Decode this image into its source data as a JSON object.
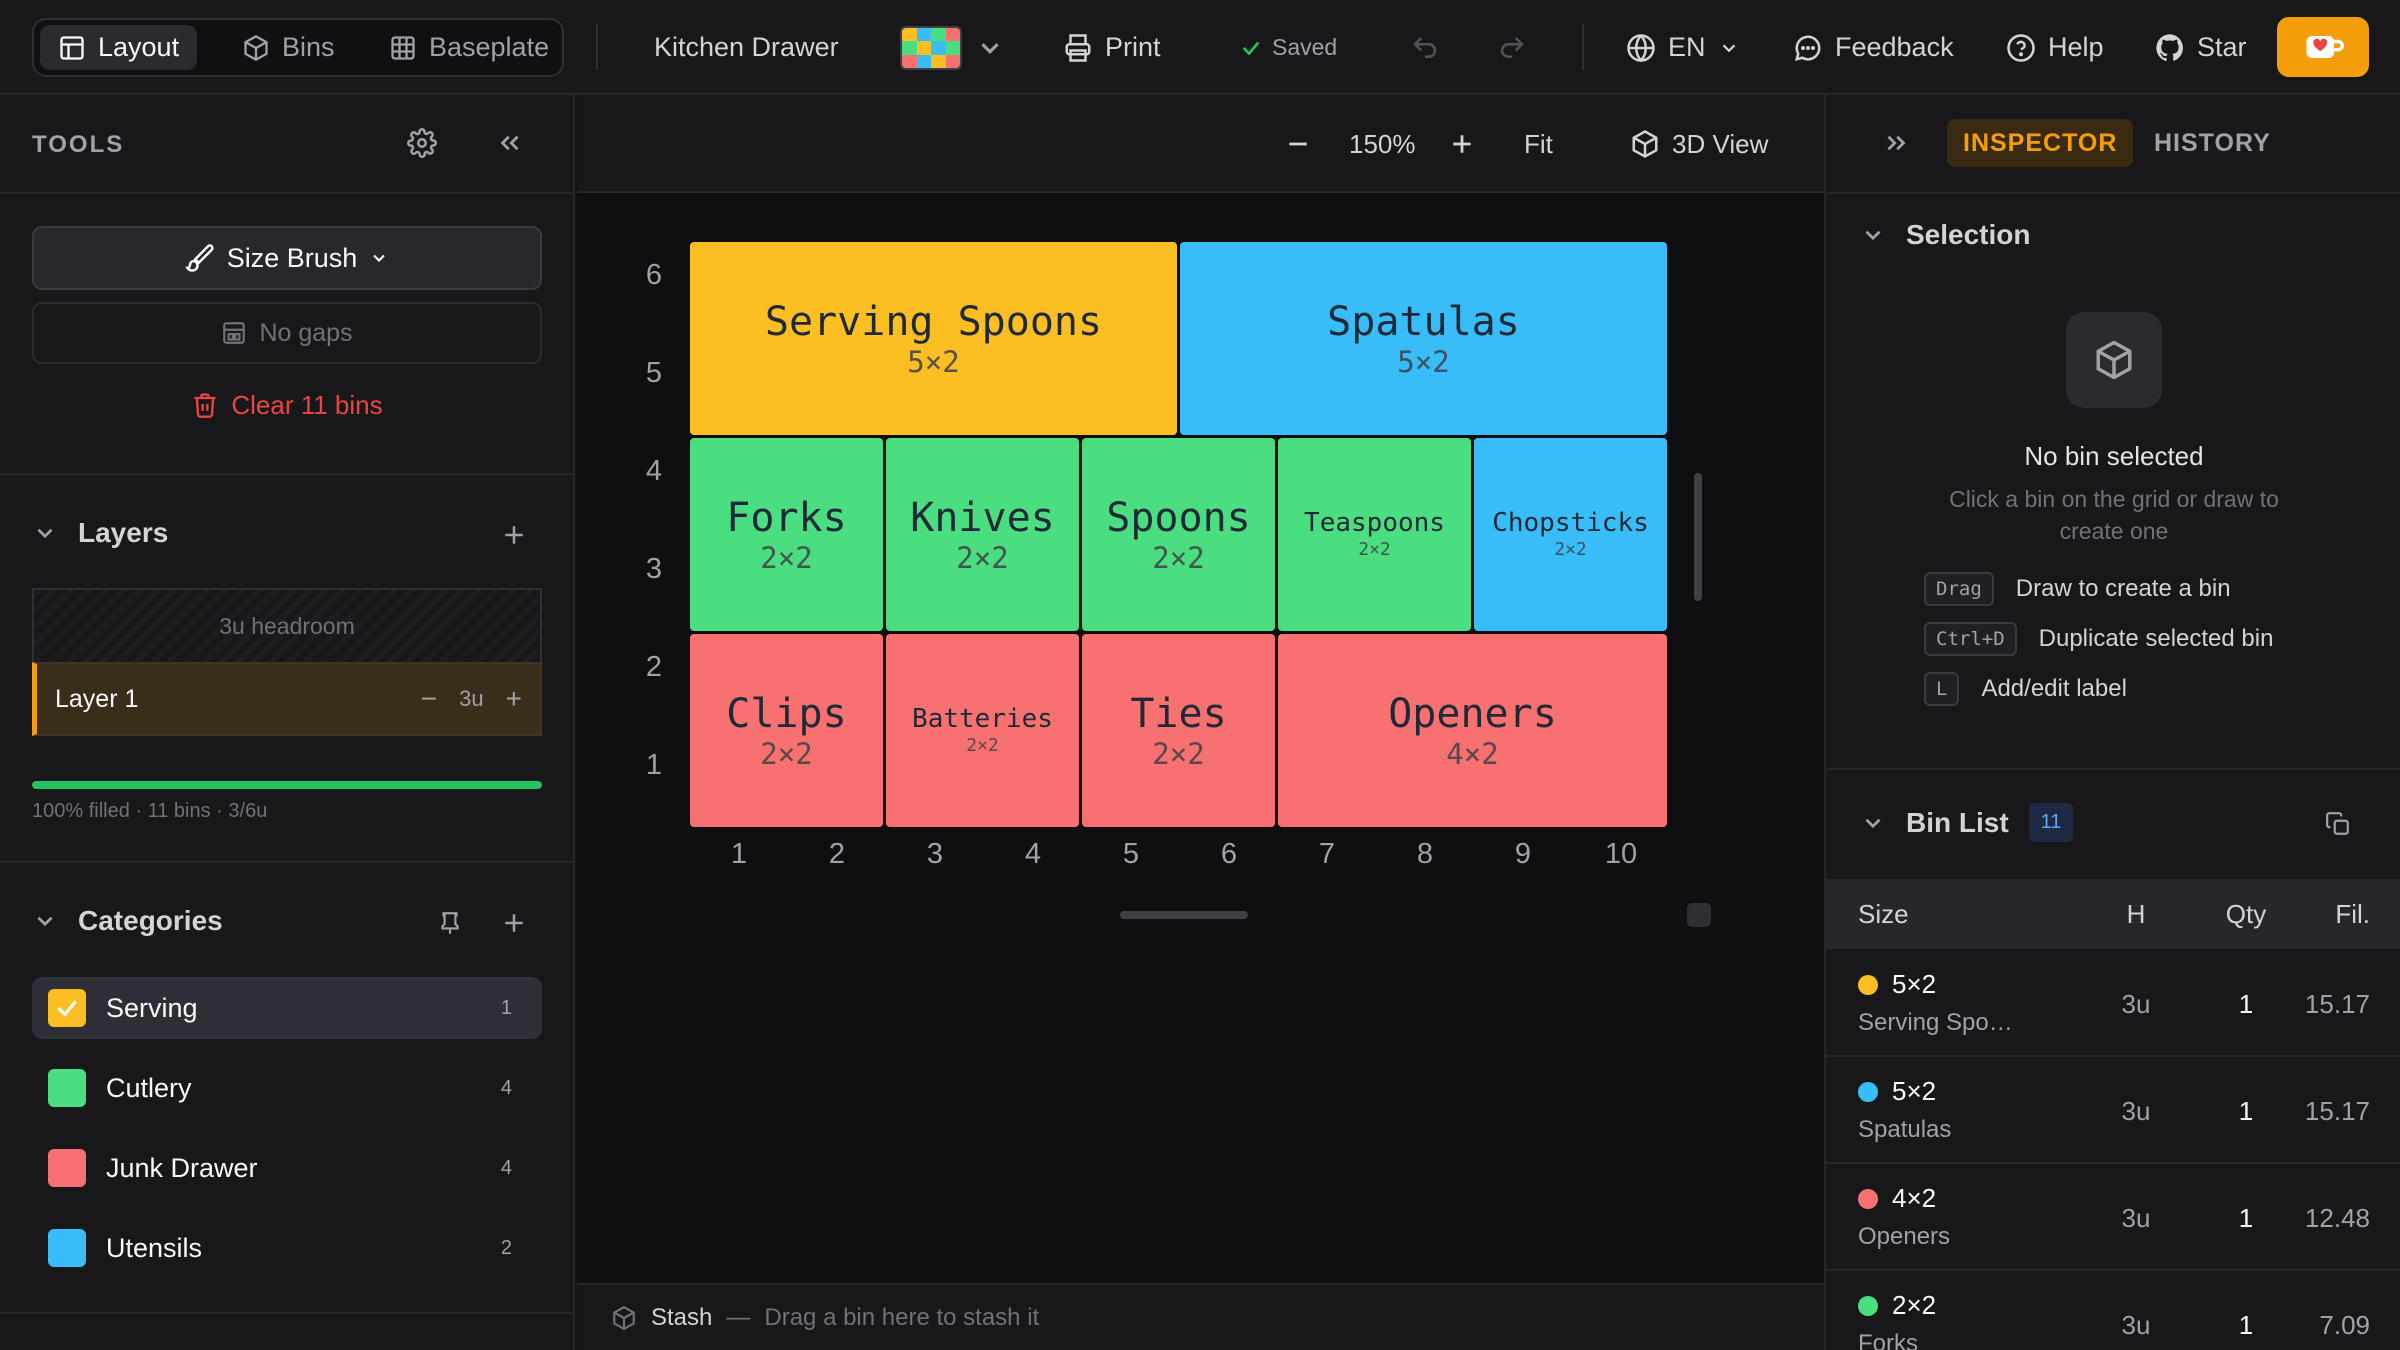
{
  "topbar": {
    "tabs": [
      {
        "label": "Layout",
        "icon": "layout-icon"
      },
      {
        "label": "Bins",
        "icon": "cube-icon"
      },
      {
        "label": "Baseplate",
        "icon": "grid-icon"
      }
    ],
    "project_name": "Kitchen Drawer",
    "print_label": "Print",
    "saved_label": "Saved",
    "language": "EN",
    "feedback_label": "Feedback",
    "help_label": "Help",
    "star_label": "Star",
    "palette_colors": [
      "#fbbf24",
      "#38bdf8",
      "#4ade80",
      "#f87171",
      "#4ade80",
      "#fbbf24",
      "#38bdf8",
      "#4ade80",
      "#f87171",
      "#38bdf8",
      "#fbbf24",
      "#f87171"
    ]
  },
  "tools": {
    "title": "TOOLS",
    "brush_label": "Size Brush",
    "gaps_label": "No gaps",
    "clear_label": "Clear 11 bins"
  },
  "layers": {
    "title": "Layers",
    "headroom": "3u headroom",
    "layer_name": "Layer 1",
    "layer_height": "3u",
    "fill_fraction": 1.0,
    "stats": "100% filled · 11 bins · 3/6u"
  },
  "categories": {
    "title": "Categories",
    "items": [
      {
        "name": "Serving",
        "color": "#fbbf24",
        "count": "1",
        "checked": true
      },
      {
        "name": "Cutlery",
        "color": "#4ade80",
        "count": "4",
        "checked": false
      },
      {
        "name": "Junk Drawer",
        "color": "#f87171",
        "count": "4",
        "checked": false
      },
      {
        "name": "Utensils",
        "color": "#38bdf8",
        "count": "2",
        "checked": false
      }
    ]
  },
  "canvas": {
    "zoom": "150%",
    "fit_label": "Fit",
    "view3d_label": "3D View",
    "cols": 10,
    "rows": 6,
    "x_ticks": [
      "1",
      "2",
      "3",
      "4",
      "5",
      "6",
      "7",
      "8",
      "9",
      "10"
    ],
    "y_ticks": [
      "6",
      "5",
      "4",
      "3",
      "2",
      "1"
    ],
    "bins": [
      {
        "label": "Serving Spoons",
        "size": "5×2",
        "color": "#fbbf24",
        "col": 1,
        "row": 5,
        "w": 5,
        "h": 2,
        "big": true
      },
      {
        "label": "Spatulas",
        "size": "5×2",
        "color": "#38bdf8",
        "col": 6,
        "row": 5,
        "w": 5,
        "h": 2,
        "big": true
      },
      {
        "label": "Forks",
        "size": "2×2",
        "color": "#4ade80",
        "col": 1,
        "row": 3,
        "w": 2,
        "h": 2,
        "big": true
      },
      {
        "label": "Knives",
        "size": "2×2",
        "color": "#4ade80",
        "col": 3,
        "row": 3,
        "w": 2,
        "h": 2,
        "big": true
      },
      {
        "label": "Spoons",
        "size": "2×2",
        "color": "#4ade80",
        "col": 5,
        "row": 3,
        "w": 2,
        "h": 2,
        "big": true
      },
      {
        "label": "Teaspoons",
        "size": "2×2",
        "color": "#4ade80",
        "col": 7,
        "row": 3,
        "w": 2,
        "h": 2,
        "big": false
      },
      {
        "label": "Chopsticks",
        "size": "2×2",
        "color": "#38bdf8",
        "col": 9,
        "row": 3,
        "w": 2,
        "h": 2,
        "big": false
      },
      {
        "label": "Clips",
        "size": "2×2",
        "color": "#f87171",
        "col": 1,
        "row": 1,
        "w": 2,
        "h": 2,
        "big": true
      },
      {
        "label": "Batteries",
        "size": "2×2",
        "color": "#f87171",
        "col": 3,
        "row": 1,
        "w": 2,
        "h": 2,
        "big": false
      },
      {
        "label": "Ties",
        "size": "2×2",
        "color": "#f87171",
        "col": 5,
        "row": 1,
        "w": 2,
        "h": 2,
        "big": true
      },
      {
        "label": "Openers",
        "size": "4×2",
        "color": "#f87171",
        "col": 7,
        "row": 1,
        "w": 4,
        "h": 2,
        "big": true
      }
    ]
  },
  "stash": {
    "title": "Stash",
    "hint": "Drag a bin here to stash it"
  },
  "inspector": {
    "tab_inspector": "INSPECTOR",
    "tab_history": "HISTORY",
    "selection_title": "Selection",
    "empty_title": "No bin selected",
    "empty_desc": "Click a bin on the grid or draw to create one",
    "hints": [
      {
        "key": "Drag",
        "text": "Draw to create a bin"
      },
      {
        "key": "Ctrl+D",
        "text": "Duplicate selected bin"
      },
      {
        "key": "L",
        "text": "Add/edit label"
      }
    ],
    "bin_list_title": "Bin List",
    "bin_count": "11",
    "columns": {
      "size": "Size",
      "h": "H",
      "qty": "Qty",
      "fil": "Fil."
    },
    "rows": [
      {
        "size": "5×2",
        "name": "Serving Spo…",
        "color": "#fbbf24",
        "h": "3u",
        "qty": "1",
        "fil": "15.17"
      },
      {
        "size": "5×2",
        "name": "Spatulas",
        "color": "#38bdf8",
        "h": "3u",
        "qty": "1",
        "fil": "15.17"
      },
      {
        "size": "4×2",
        "name": "Openers",
        "color": "#f87171",
        "h": "3u",
        "qty": "1",
        "fil": "12.48"
      },
      {
        "size": "2×2",
        "name": "Forks",
        "color": "#4ade80",
        "h": "3u",
        "qty": "1",
        "fil": "7.09"
      }
    ]
  }
}
